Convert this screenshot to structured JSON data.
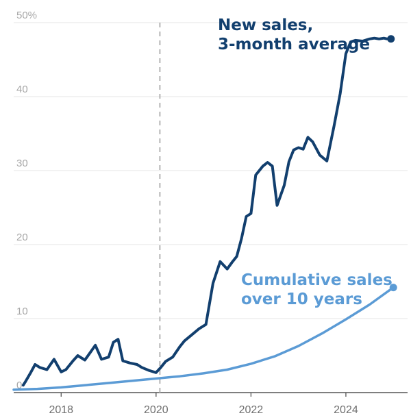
{
  "chart_data": {
    "type": "line",
    "xlabel": "",
    "ylabel": "",
    "xlim": [
      2017.0,
      2025.3
    ],
    "ylim": [
      0,
      50
    ],
    "y_ticks": [
      {
        "value": 0,
        "label": "0"
      },
      {
        "value": 10,
        "label": "10"
      },
      {
        "value": 20,
        "label": "20"
      },
      {
        "value": 30,
        "label": "30"
      },
      {
        "value": 40,
        "label": "40"
      },
      {
        "value": 50,
        "label": "50%"
      }
    ],
    "x_ticks": [
      {
        "value": 2018,
        "label": "2018"
      },
      {
        "value": 2020,
        "label": "2020"
      },
      {
        "value": 2022,
        "label": "2022"
      },
      {
        "value": 2024,
        "label": "2024"
      }
    ],
    "reference_line": {
      "x": 2020.08,
      "style": "dashed"
    },
    "grid": "horizontal",
    "series": [
      {
        "name": "New sales, 3-month average",
        "name_lines": [
          "New sales,",
          "3-month average"
        ],
        "color": "#123f6e",
        "x": [
          2017.2,
          2017.25,
          2017.35,
          2017.45,
          2017.55,
          2017.7,
          2017.85,
          2018.0,
          2018.1,
          2018.25,
          2018.35,
          2018.5,
          2018.6,
          2018.72,
          2018.85,
          2019.0,
          2019.1,
          2019.2,
          2019.3,
          2019.45,
          2019.6,
          2019.7,
          2019.85,
          2020.0,
          2020.1,
          2020.2,
          2020.35,
          2020.5,
          2020.6,
          2020.75,
          2020.9,
          2021.05,
          2021.2,
          2021.35,
          2021.5,
          2021.6,
          2021.7,
          2021.8,
          2021.9,
          2022.0,
          2022.1,
          2022.25,
          2022.35,
          2022.45,
          2022.55,
          2022.7,
          2022.8,
          2022.9,
          2023.0,
          2023.1,
          2023.2,
          2023.3,
          2023.45,
          2023.6,
          2023.75,
          2023.88,
          2024.0,
          2024.1,
          2024.2,
          2024.35,
          2024.5,
          2024.6,
          2024.7,
          2024.8,
          2024.87,
          2024.95
        ],
        "values": [
          1.0,
          1.5,
          2.6,
          3.8,
          3.4,
          3.1,
          4.5,
          2.8,
          3.1,
          4.3,
          5.0,
          4.4,
          5.3,
          6.4,
          4.5,
          4.8,
          6.8,
          7.2,
          4.3,
          4.0,
          3.8,
          3.4,
          3.0,
          2.7,
          3.4,
          4.2,
          4.8,
          6.2,
          7.0,
          7.8,
          8.6,
          9.2,
          14.8,
          17.7,
          16.7,
          17.6,
          18.4,
          20.8,
          23.8,
          24.2,
          29.4,
          30.6,
          31.1,
          30.6,
          25.3,
          28.0,
          31.2,
          32.8,
          33.1,
          32.9,
          34.5,
          33.9,
          32.1,
          31.3,
          36.0,
          40.4,
          45.8,
          47.4,
          47.6,
          47.5,
          47.8,
          47.9,
          47.8,
          47.9,
          47.8,
          47.8
        ]
      },
      {
        "name": "Cumulative sales over 10 years",
        "name_lines": [
          "Cumulative sales",
          "over 10 years"
        ],
        "color": "#5b9bd5",
        "x": [
          2017.0,
          2017.5,
          2018.0,
          2018.5,
          2019.0,
          2019.5,
          2020.0,
          2020.5,
          2021.0,
          2021.5,
          2022.0,
          2022.5,
          2023.0,
          2023.5,
          2024.0,
          2024.5,
          2025.0
        ],
        "values": [
          0.4,
          0.5,
          0.7,
          1.0,
          1.3,
          1.6,
          1.9,
          2.2,
          2.6,
          3.1,
          3.9,
          4.9,
          6.3,
          8.0,
          9.9,
          11.9,
          14.2
        ]
      }
    ]
  }
}
